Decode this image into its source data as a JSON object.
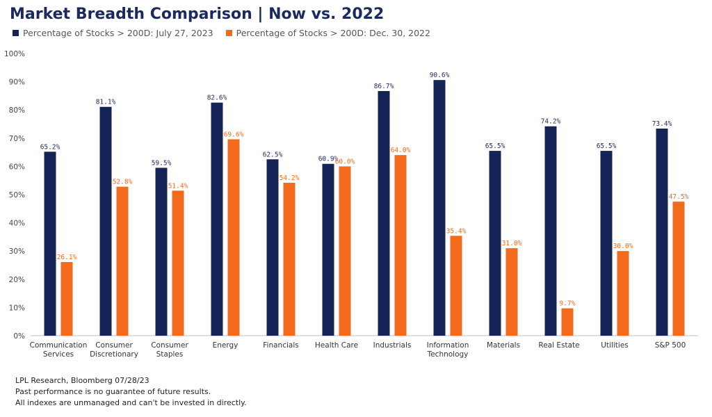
{
  "title": "Market Breadth Comparison | Now vs. 2022",
  "footer": {
    "line1": "LPL Research, Bloomberg 07/28/23",
    "line2": "Past performance is no guarantee of future results.",
    "line3": "All indexes are unmanaged and can't be invested in directly."
  },
  "chart_data": {
    "type": "bar",
    "title": "Market Breadth Comparison | Now vs. 2022",
    "xlabel": "",
    "ylabel": "",
    "ylim": [
      0,
      100
    ],
    "yticks": [
      "0%",
      "10%",
      "20%",
      "30%",
      "40%",
      "50%",
      "60%",
      "70%",
      "80%",
      "90%",
      "100%"
    ],
    "grid": false,
    "legend_position": "top-left",
    "categories": [
      [
        "Communication",
        "Services"
      ],
      [
        "Consumer",
        "Discretionary"
      ],
      [
        "Consumer",
        "Staples"
      ],
      [
        "Energy"
      ],
      [
        "Financials"
      ],
      [
        "Health Care"
      ],
      [
        "Industrials"
      ],
      [
        "Information",
        "Technology"
      ],
      [
        "Materials"
      ],
      [
        "Real Estate"
      ],
      [
        "Utilities"
      ],
      [
        "S&P 500"
      ]
    ],
    "series": [
      {
        "name": "Percentage of Stocks > 200D: July 27, 2023",
        "color": "#162455",
        "values": [
          65.2,
          81.1,
          59.5,
          82.6,
          62.5,
          60.9,
          86.7,
          90.6,
          65.5,
          74.2,
          65.5,
          73.4
        ],
        "labels": [
          "65.2%",
          "81.1%",
          "59.5%",
          "82.6%",
          "62.5%",
          "60.9%",
          "86.7%",
          "90.6%",
          "65.5%",
          "74.2%",
          "65.5%",
          "73.4%"
        ]
      },
      {
        "name": "Percentage of Stocks > 200D: Dec. 30, 2022",
        "color": "#f26a1b",
        "values": [
          26.1,
          52.8,
          51.4,
          69.6,
          54.2,
          60.0,
          64.0,
          35.4,
          31.0,
          9.7,
          30.0,
          47.5
        ],
        "labels": [
          "26.1%",
          "52.8%",
          "51.4%",
          "69.6%",
          "54.2%",
          "60.0%",
          "64.0%",
          "35.4%",
          "31.0%",
          "9.7%",
          "30.0%",
          "47.5%"
        ]
      }
    ]
  }
}
